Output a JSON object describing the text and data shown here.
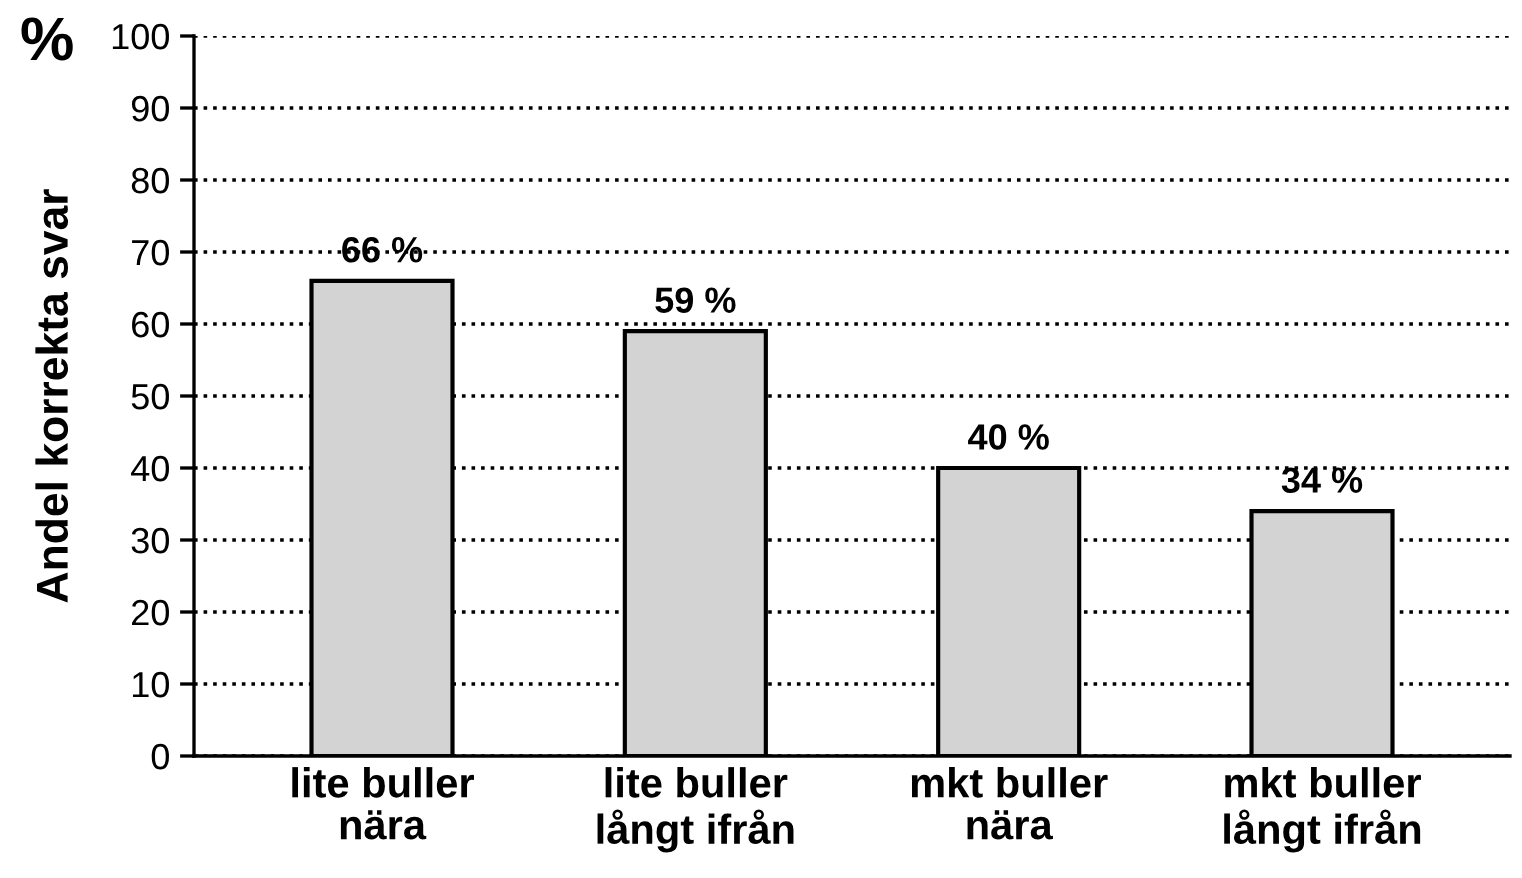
{
  "chart_data": {
    "type": "bar",
    "ylabel": "Andel korrekta svar",
    "annotations": [
      "%"
    ],
    "categories": [
      "lite buller\nnära",
      "lite buller\nlångt ifrån",
      "mkt buller\nnära",
      "mkt buller\nlångt ifrån"
    ],
    "values": [
      66,
      59,
      40,
      34
    ],
    "color": "#d3d3d3",
    "data_labels": true,
    "value_labels": [
      "66 %",
      "59 %",
      "40 %",
      "34 %"
    ],
    "ylim": [
      0,
      100
    ],
    "yticks": [
      0,
      10,
      20,
      30,
      40,
      50,
      60,
      70,
      80,
      90,
      100
    ],
    "grid": "y",
    "line_style": "dotted",
    "legend": false
  }
}
